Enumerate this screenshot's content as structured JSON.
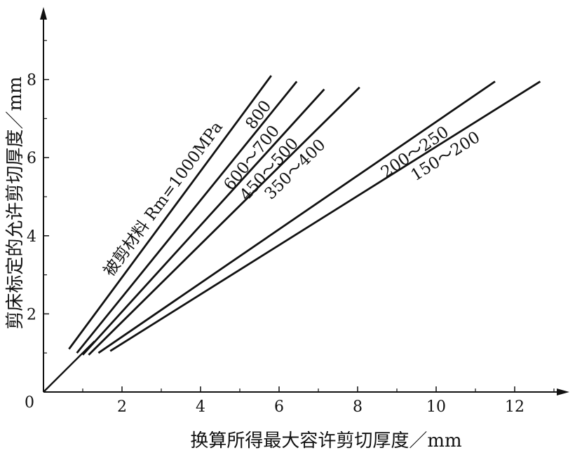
{
  "chart_data": {
    "type": "line",
    "xlabel": "换算所得最大容许剪切厚度／mm",
    "ylabel": "剪床标定的允许剪切厚度／mm",
    "origin_label": "0",
    "x_ticks": [
      "2",
      "4",
      "6",
      "8",
      "10",
      "12"
    ],
    "y_ticks": [
      "2",
      "4",
      "6",
      "8"
    ],
    "xlim": [
      0,
      13.7
    ],
    "ylim": [
      0,
      9.8
    ],
    "grid": false,
    "legend": "none",
    "annotation": "被剪材料 Rm=1000MPa",
    "series": [
      {
        "name": "800",
        "x": [
          0.65,
          5.8
        ],
        "y": [
          1.1,
          8.1
        ]
      },
      {
        "name": "600～700",
        "x": [
          0.85,
          6.45
        ],
        "y": [
          1.0,
          7.95
        ]
      },
      {
        "name": "450～500",
        "x": [
          1.0,
          7.15
        ],
        "y": [
          0.95,
          7.75
        ]
      },
      {
        "name": "350～400",
        "x": [
          1.15,
          8.05
        ],
        "y": [
          0.95,
          7.8
        ]
      },
      {
        "name": "200～250",
        "x": [
          1.4,
          11.5
        ],
        "y": [
          1.0,
          7.95
        ]
      },
      {
        "name": "150～200",
        "x": [
          1.7,
          12.65
        ],
        "y": [
          1.05,
          7.95
        ]
      }
    ],
    "diagonal": {
      "x": [
        0,
        1.3
      ],
      "y": [
        0,
        1.3
      ]
    }
  }
}
